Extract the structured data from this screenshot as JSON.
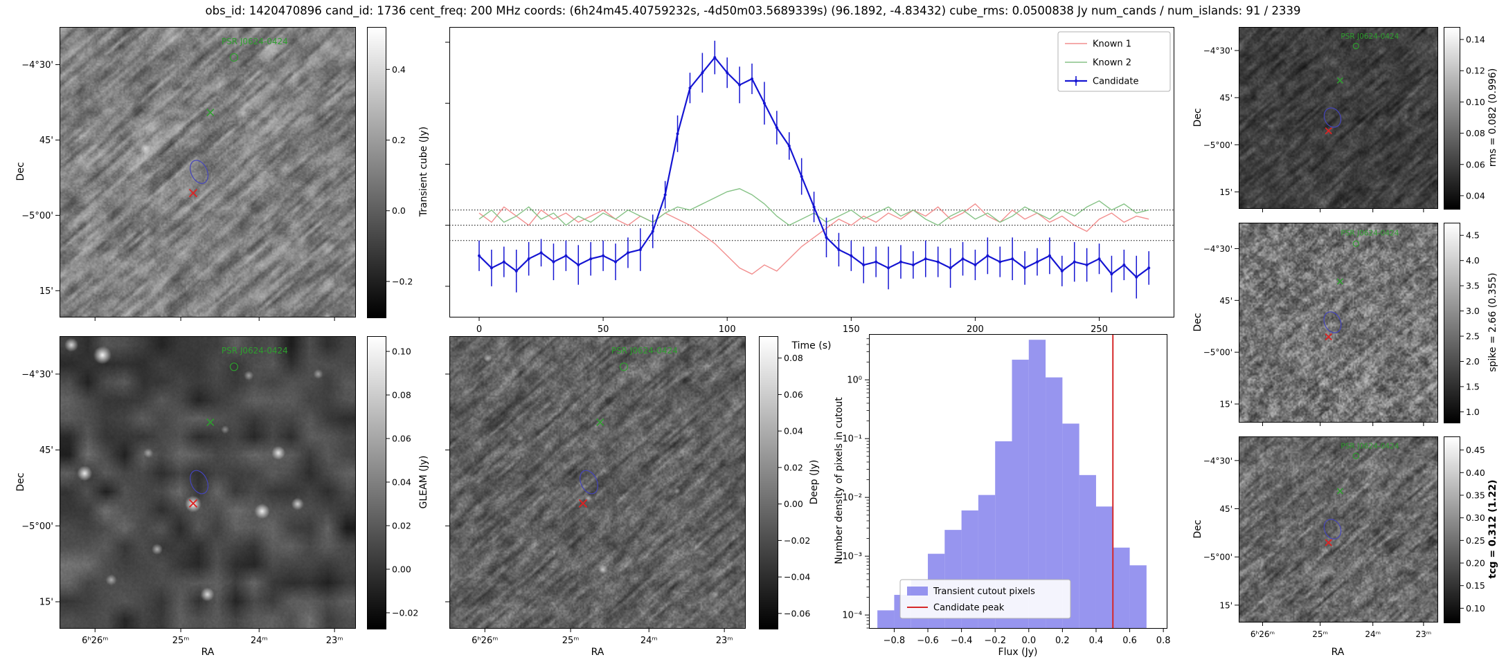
{
  "title": "obs_id: 1420470896 cand_id: 1736 cent_freq: 200 MHz coords: (6h24m45.40759232s, -4d50m03.5689339s) (96.1892, -4.83432) cube_rms: 0.0500838 Jy num_cands / num_islands: 91 / 2339",
  "psr_label": "PSR J0624-0424",
  "colors": {
    "known1": "#f28e8e",
    "known2": "#85c285",
    "candidate": "#1414d2",
    "hist_bar": "#8583ec",
    "hist_line": "#d62728",
    "marker_green": "#2e9e2e",
    "marker_red": "#dd2222",
    "ellipse_blue": "#4444bb"
  },
  "axis": {
    "dec_label": "Dec",
    "ra_label": "RA",
    "dec_ticks": [
      "−4°30'",
      "45'",
      "−5°00'",
      "15'"
    ],
    "ra_ticks": [
      "6ʰ26ᵐ",
      "25ᵐ",
      "24ᵐ",
      "23ᵐ"
    ]
  },
  "markers": {
    "label_pos": [
      0.66,
      0.05
    ],
    "circle_pos": [
      0.59,
      0.105
    ],
    "green_x": [
      0.51,
      0.295
    ],
    "ellipse": [
      0.472,
      0.5
    ],
    "red_x": [
      0.452,
      0.573
    ]
  },
  "colorbars": {
    "cube": {
      "label": "Transient cube (Jy)",
      "tick_labels": [
        "0.4",
        "0.2",
        "0.0",
        "−0.2"
      ],
      "tick_values": [
        0.4,
        0.2,
        0.0,
        -0.2
      ],
      "vmin": -0.3,
      "vmax": 0.52
    },
    "gleam": {
      "label": "GLEAM (Jy)",
      "tick_labels": [
        "0.10",
        "0.08",
        "0.06",
        "0.04",
        "0.02",
        "0.00",
        "−0.02"
      ],
      "tick_values": [
        0.1,
        0.08,
        0.06,
        0.04,
        0.02,
        0.0,
        -0.02
      ],
      "vmin": -0.027,
      "vmax": 0.107
    },
    "deep": {
      "label": "Deep (Jy)",
      "tick_labels": [
        "0.08",
        "0.06",
        "0.04",
        "0.02",
        "0.00",
        "−0.02",
        "−0.04",
        "−0.06"
      ],
      "tick_values": [
        0.08,
        0.06,
        0.04,
        0.02,
        0.0,
        -0.02,
        -0.04,
        -0.06
      ],
      "vmin": -0.068,
      "vmax": 0.092
    },
    "rms": {
      "label": "rms = 0.082 (0.996)",
      "tick_labels": [
        "0.14",
        "0.12",
        "0.10",
        "0.08",
        "0.06",
        "0.04"
      ],
      "tick_values": [
        0.14,
        0.12,
        0.1,
        0.08,
        0.06,
        0.04
      ],
      "vmin": 0.032,
      "vmax": 0.148
    },
    "spike": {
      "label": "spike = 2.66 (0.355)",
      "tick_labels": [
        "4.5",
        "4.0",
        "3.5",
        "3.0",
        "2.5",
        "2.0",
        "1.5",
        "1.0"
      ],
      "tick_values": [
        4.5,
        4.0,
        3.5,
        3.0,
        2.5,
        2.0,
        1.5,
        1.0
      ],
      "vmin": 0.8,
      "vmax": 4.75
    },
    "tcg": {
      "label": "tcg = 0.312 (1.22)",
      "tick_labels": [
        "0.45",
        "0.40",
        "0.35",
        "0.30",
        "0.25",
        "0.20",
        "0.15",
        "0.10"
      ],
      "tick_values": [
        0.45,
        0.4,
        0.35,
        0.3,
        0.25,
        0.2,
        0.15,
        0.1
      ],
      "vmin": 0.07,
      "vmax": 0.48,
      "bold": true
    }
  },
  "chart_data": [
    {
      "type": "line",
      "title": "",
      "xlabel": "Time (s)",
      "ylabel": "",
      "xlim": [
        -12,
        280
      ],
      "ylim": [
        -0.3,
        0.65
      ],
      "x_ticks": [
        0,
        50,
        100,
        150,
        200,
        250
      ],
      "y_minor_ticks": [
        -0.2,
        0,
        0.2,
        0.4,
        0.6
      ],
      "threshold_lines": [
        0.05,
        0.0,
        -0.05
      ],
      "legend_position": "upper right",
      "x": [
        0,
        5,
        10,
        15,
        20,
        25,
        30,
        35,
        40,
        45,
        50,
        55,
        60,
        65,
        70,
        75,
        80,
        85,
        90,
        95,
        100,
        105,
        110,
        115,
        120,
        125,
        130,
        135,
        140,
        145,
        150,
        155,
        160,
        165,
        170,
        175,
        180,
        185,
        190,
        195,
        200,
        205,
        210,
        215,
        220,
        225,
        230,
        235,
        240,
        245,
        250,
        255,
        260,
        265,
        270
      ],
      "series": [
        {
          "name": "Known 1",
          "color_key": "known1",
          "values": [
            0.04,
            0.01,
            0.06,
            0.03,
            0.0,
            0.05,
            0.02,
            0.04,
            0.01,
            0.03,
            0.05,
            0.02,
            0.0,
            0.03,
            0.01,
            0.04,
            0.02,
            0.0,
            -0.03,
            -0.06,
            -0.1,
            -0.14,
            -0.16,
            -0.13,
            -0.15,
            -0.11,
            -0.07,
            -0.04,
            -0.01,
            0.02,
            0.0,
            0.03,
            0.01,
            0.04,
            0.02,
            0.05,
            0.03,
            0.06,
            0.02,
            0.04,
            0.07,
            0.03,
            0.01,
            0.05,
            0.02,
            0.04,
            0.01,
            0.03,
            0.0,
            -0.02,
            0.02,
            0.04,
            0.01,
            0.03,
            0.02
          ]
        },
        {
          "name": "Known 2",
          "color_key": "known2",
          "values": [
            0.02,
            0.05,
            0.01,
            0.03,
            0.06,
            0.02,
            0.04,
            0.0,
            0.03,
            0.01,
            0.04,
            0.02,
            0.05,
            0.03,
            0.01,
            0.04,
            0.06,
            0.05,
            0.07,
            0.09,
            0.11,
            0.12,
            0.1,
            0.07,
            0.03,
            0.0,
            0.02,
            0.04,
            0.01,
            0.03,
            0.05,
            0.02,
            0.04,
            0.06,
            0.03,
            0.05,
            0.02,
            0.0,
            0.03,
            0.05,
            0.02,
            0.04,
            0.01,
            0.03,
            0.06,
            0.04,
            0.02,
            0.05,
            0.03,
            0.06,
            0.08,
            0.05,
            0.07,
            0.04,
            0.05
          ]
        },
        {
          "name": "Candidate",
          "color_key": "candidate",
          "values": [
            -0.1,
            -0.14,
            -0.12,
            -0.15,
            -0.11,
            -0.09,
            -0.12,
            -0.1,
            -0.13,
            -0.11,
            -0.1,
            -0.12,
            -0.09,
            -0.08,
            -0.02,
            0.1,
            0.3,
            0.45,
            0.5,
            0.55,
            0.5,
            0.46,
            0.48,
            0.4,
            0.32,
            0.26,
            0.16,
            0.06,
            -0.04,
            -0.08,
            -0.1,
            -0.13,
            -0.12,
            -0.14,
            -0.12,
            -0.13,
            -0.11,
            -0.12,
            -0.14,
            -0.11,
            -0.13,
            -0.1,
            -0.12,
            -0.11,
            -0.14,
            -0.12,
            -0.1,
            -0.15,
            -0.12,
            -0.13,
            -0.11,
            -0.16,
            -0.13,
            -0.17,
            -0.14
          ],
          "errors": [
            0.05,
            0.06,
            0.05,
            0.07,
            0.055,
            0.045,
            0.06,
            0.05,
            0.065,
            0.055,
            0.05,
            0.06,
            0.05,
            0.07,
            0.055,
            0.045,
            0.06,
            0.05,
            0.065,
            0.055,
            0.05,
            0.06,
            0.05,
            0.07,
            0.055,
            0.045,
            0.06,
            0.05,
            0.065,
            0.055,
            0.05,
            0.06,
            0.05,
            0.07,
            0.055,
            0.045,
            0.06,
            0.05,
            0.065,
            0.055,
            0.05,
            0.06,
            0.05,
            0.07,
            0.055,
            0.045,
            0.06,
            0.05,
            0.065,
            0.055,
            0.05,
            0.06,
            0.05,
            0.07,
            0.055
          ]
        }
      ]
    },
    {
      "type": "bar",
      "title": "",
      "xlabel": "Flux (Jy)",
      "ylabel": "Number density of pixels in cutout",
      "yscale": "log",
      "xlim": [
        -0.95,
        0.82
      ],
      "ylim": [
        6e-05,
        6
      ],
      "bin_edges": [
        -0.9,
        -0.8,
        -0.7,
        -0.6,
        -0.5,
        -0.4,
        -0.3,
        -0.2,
        -0.1,
        0.0,
        0.1,
        0.2,
        0.3,
        0.4,
        0.5,
        0.6,
        0.7
      ],
      "values": [
        0.00012,
        0.00022,
        0.0004,
        0.0011,
        0.0028,
        0.006,
        0.011,
        0.09,
        2.2,
        4.8,
        1.1,
        0.18,
        0.024,
        0.007,
        0.0014,
        0.0007
      ],
      "x_tick_values": [
        -0.8,
        -0.6,
        -0.4,
        -0.2,
        0.0,
        0.2,
        0.4,
        0.6,
        0.8
      ],
      "x_tick_labels": [
        "−0.8",
        "−0.6",
        "−0.4",
        "−0.2",
        "0.0",
        "0.2",
        "0.4",
        "0.6",
        "0.8"
      ],
      "y_tick_values": [
        1,
        0.1,
        0.01,
        0.001,
        0.0001
      ],
      "y_tick_labels": [
        "10⁰",
        "10⁻¹",
        "10⁻²",
        "10⁻³",
        "10⁻⁴"
      ],
      "candidate_peak_x": 0.5,
      "legend": [
        "Transient cutout pixels",
        "Candidate peak"
      ],
      "legend_position": "lower left"
    }
  ]
}
